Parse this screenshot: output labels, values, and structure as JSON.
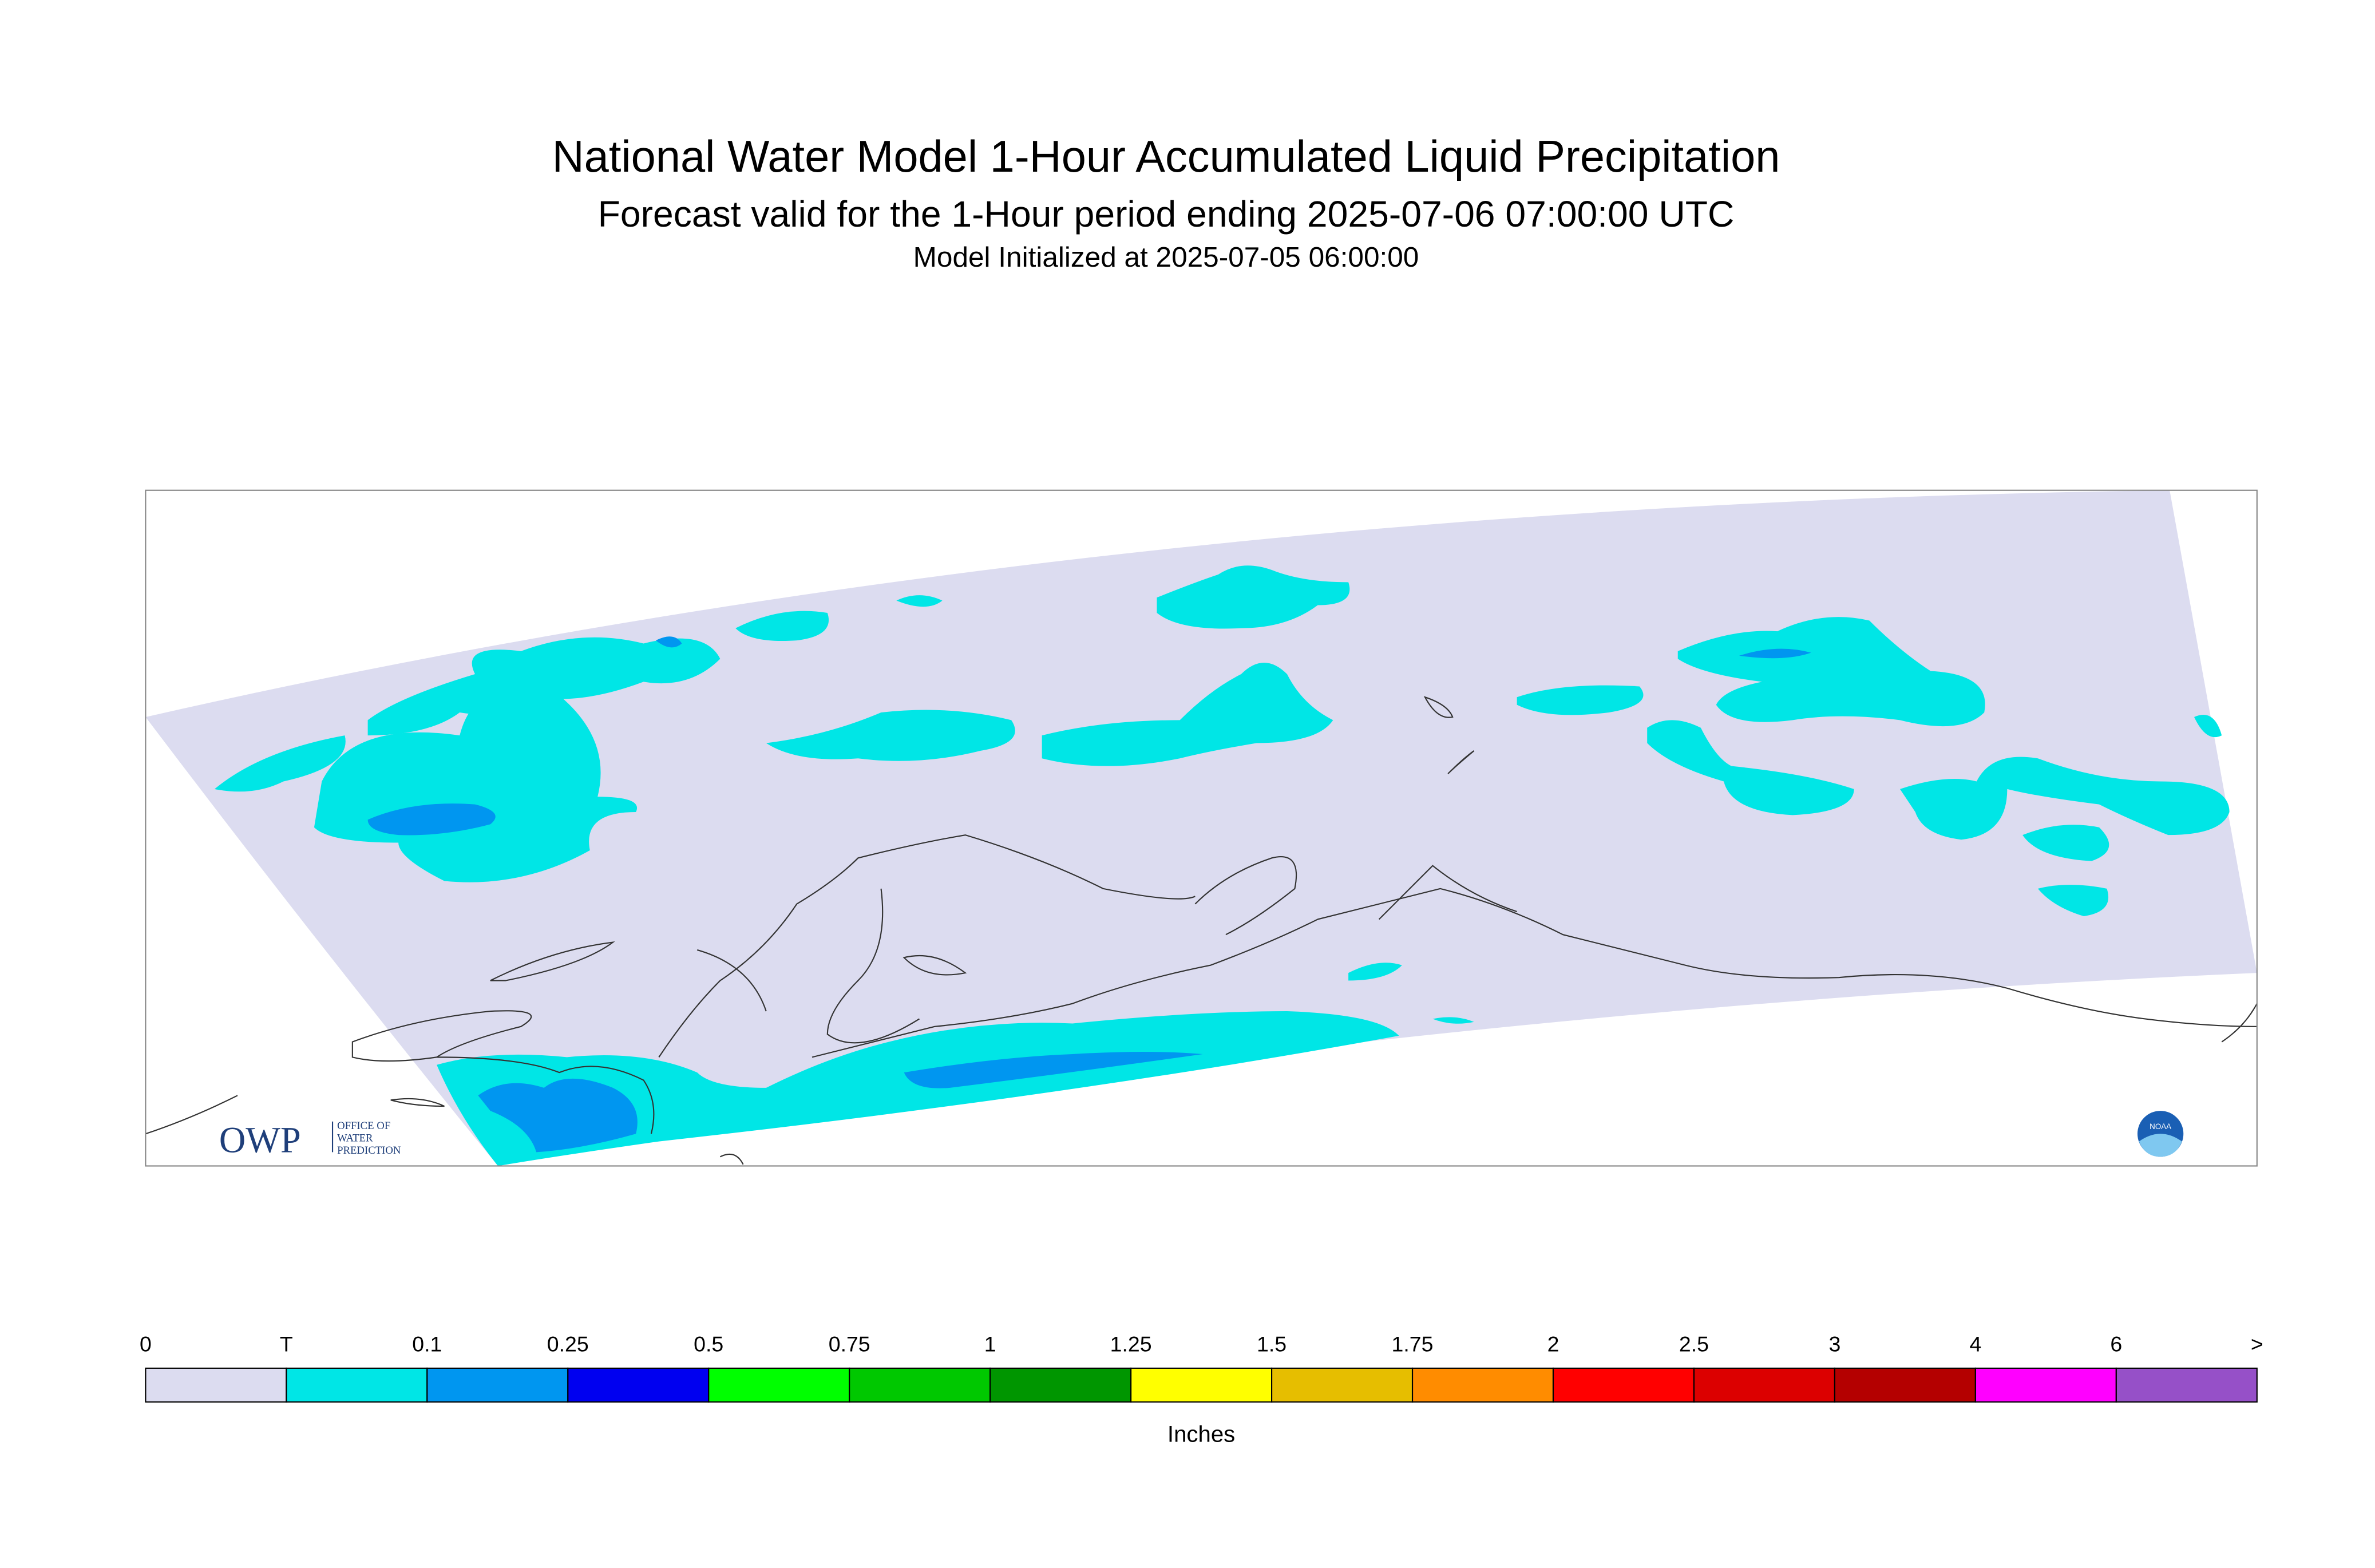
{
  "header": {
    "title": "National Water Model 1-Hour Accumulated Liquid Precipitation",
    "subtitle": "Forecast valid for the 1-Hour period ending 2025-07-06 07:00:00 UTC",
    "initialized": "Model Initialized at 2025-07-05 06:00:00"
  },
  "logos": {
    "owp": "OWP",
    "owp_line1": "OFFICE OF",
    "owp_line2": "WATER",
    "owp_line3": "PREDICTION",
    "noaa": "NOAA"
  },
  "legend": {
    "labels": [
      "0",
      "T",
      "0.1",
      "0.25",
      "0.5",
      "0.75",
      "1",
      "1.25",
      "1.5",
      "1.75",
      "2",
      "2.5",
      "3",
      "4",
      "6",
      ">"
    ],
    "colors": [
      "#dcdcf0",
      "#00e6e6",
      "#0096f0",
      "#0000f0",
      "#00ff00",
      "#00c800",
      "#009600",
      "#ffff00",
      "#e6be00",
      "#ff8c00",
      "#ff0000",
      "#dc0000",
      "#b40000",
      "#ff00ff",
      "#9650c8"
    ],
    "unit": "Inches"
  }
}
